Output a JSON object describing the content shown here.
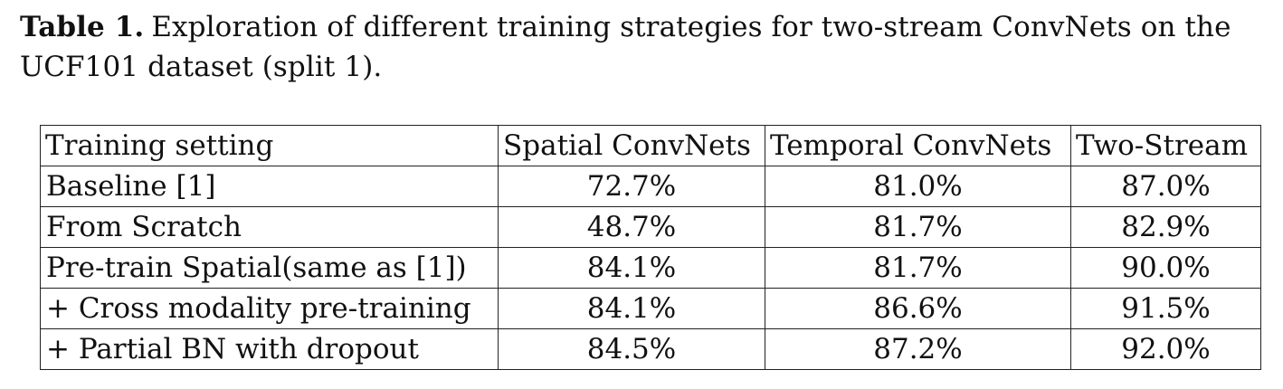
{
  "caption": {
    "label": "Table 1.",
    "text": "Exploration of different training strategies for two-stream ConvNets on the UCF101 dataset (split 1)."
  },
  "table": {
    "headers": [
      "Training setting",
      "Spatial ConvNets",
      "Temporal ConvNets",
      "Two-Stream"
    ],
    "rows": [
      {
        "setting": "Baseline [1]",
        "spatial": "72.7%",
        "temporal": "81.0%",
        "two_stream": "87.0%"
      },
      {
        "setting": "From Scratch",
        "spatial": "48.7%",
        "temporal": "81.7%",
        "two_stream": "82.9%"
      },
      {
        "setting": "Pre-train Spatial(same as [1])",
        "spatial": "84.1%",
        "temporal": "81.7%",
        "two_stream": "90.0%"
      },
      {
        "setting": "+ Cross modality pre-training",
        "spatial": "84.1%",
        "temporal": "86.6%",
        "two_stream": "91.5%"
      },
      {
        "setting": "+ Partial BN with dropout",
        "spatial": "84.5%",
        "temporal": "87.2%",
        "two_stream": "92.0%"
      }
    ]
  }
}
